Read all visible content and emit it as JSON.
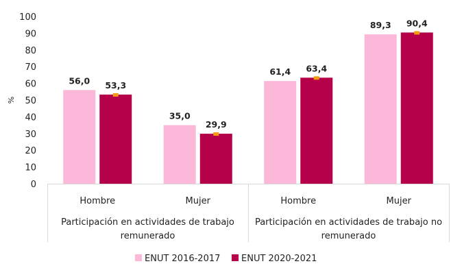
{
  "chart_data": {
    "type": "bar",
    "title": "",
    "xlabel": "",
    "ylabel": "%",
    "ylim": [
      0,
      100
    ],
    "yticks": [
      0,
      10,
      20,
      30,
      40,
      50,
      60,
      70,
      80,
      90,
      100
    ],
    "grid": false,
    "legend_position": "bottom",
    "groups": [
      {
        "label": "Participación en actividades de trabajo remunerado",
        "label_lines": [
          "Participación en actividades de trabajo",
          "remunerado"
        ],
        "categories": [
          "Hombre",
          "Mujer"
        ]
      },
      {
        "label": "Participación en actividades de trabajo no remunerado",
        "label_lines": [
          "Participación en actividades de trabajo no",
          "remunerado"
        ],
        "categories": [
          "Hombre",
          "Mujer"
        ]
      }
    ],
    "categories": [
      "Hombre",
      "Mujer",
      "Hombre",
      "Mujer"
    ],
    "series": [
      {
        "name": "ENUT 2016-2017",
        "color": "#fbb8d8",
        "values": [
          56.0,
          35.0,
          61.4,
          89.3
        ],
        "labels": [
          "56,0",
          "35,0",
          "61,4",
          "89,3"
        ]
      },
      {
        "name": "ENUT 2020-2021",
        "color": "#b5004a",
        "marker_color": "#f39c12",
        "values": [
          53.3,
          29.9,
          63.4,
          90.4
        ],
        "labels": [
          "53,3",
          "29,9",
          "63,4",
          "90,4"
        ]
      }
    ]
  }
}
